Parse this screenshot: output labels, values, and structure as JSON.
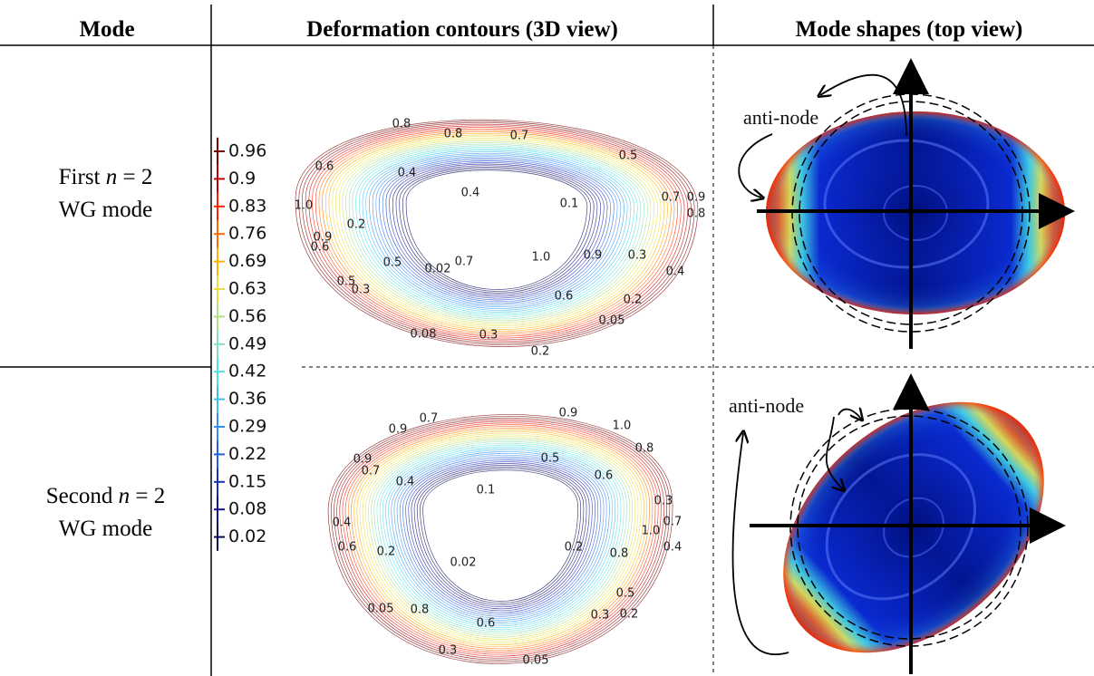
{
  "header": {
    "col1": "Mode",
    "col2": "Deformation contours (3D view)",
    "col3": "Mode shapes (top view)"
  },
  "rows": [
    {
      "label": {
        "line1": [
          "First",
          "n",
          "= 2"
        ],
        "line2": "WG mode"
      },
      "contour_labels": [
        "0.8",
        "0.8",
        "0.7",
        "0.5",
        "0.6",
        "0.4",
        "0.4",
        "0.1",
        "0.7",
        "0.9",
        "0.8",
        "1.0",
        "0.2",
        "0.9",
        "0.6",
        "0.5",
        "0.02",
        "0.7",
        "1.0",
        "0.9",
        "0.3",
        "0.4",
        "0.5",
        "0.3",
        "0.6",
        "0.2",
        "0.05",
        "0.08",
        "0.3",
        "0.2"
      ],
      "annotation": "anti-node"
    },
    {
      "label": {
        "line1": [
          "Second",
          "n",
          "= 2"
        ],
        "line2": "WG mode"
      },
      "contour_labels": [
        "0.7",
        "0.9",
        "0.9",
        "1.0",
        "0.8",
        "0.9",
        "0.7",
        "0.5",
        "0.6",
        "0.4",
        "0.1",
        "0.3",
        "0.4",
        "0.7",
        "1.0",
        "0.6",
        "0.2",
        "0.2",
        "0.8",
        "0.4",
        "0.02",
        "0.5",
        "0.05",
        "0.8",
        "0.6",
        "0.3",
        "0.2",
        "0.3",
        "0.05"
      ],
      "annotation": "anti-node"
    }
  ],
  "colorbar": {
    "ticks": [
      "0.96",
      "0.9",
      "0.83",
      "0.76",
      "0.69",
      "0.63",
      "0.56",
      "0.49",
      "0.42",
      "0.36",
      "0.29",
      "0.22",
      "0.15",
      "0.08",
      "0.02"
    ]
  }
}
